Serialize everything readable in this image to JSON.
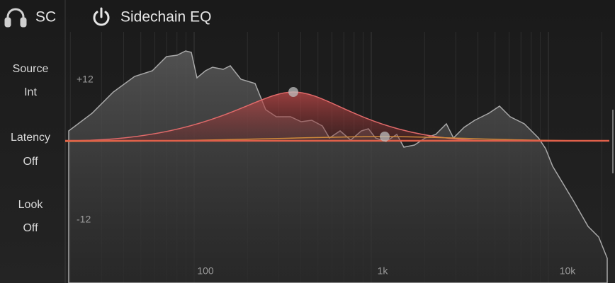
{
  "header": {
    "sc": "SC",
    "title": "Sidechain EQ"
  },
  "controls": [
    {
      "label": "Source",
      "value": "Int"
    },
    {
      "label": "Latency",
      "value": "Off"
    },
    {
      "label": "Look",
      "value": "Off"
    }
  ],
  "graph": {
    "gain_labels": [
      "+12",
      "-12"
    ],
    "freq_labels": [
      "100",
      "1k",
      "10k"
    ]
  }
}
